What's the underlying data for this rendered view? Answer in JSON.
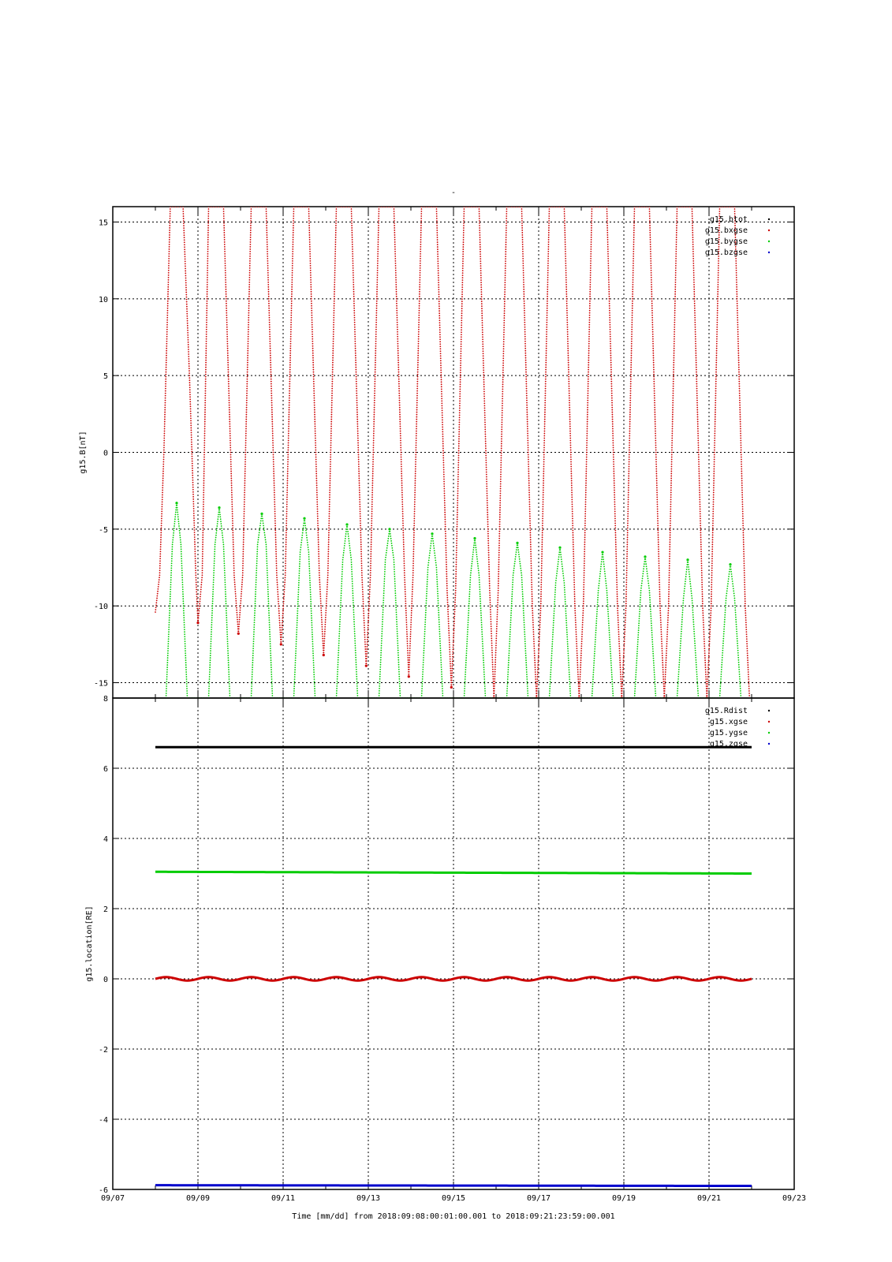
{
  "title": "-",
  "xlabel": "Time [mm/dd]  from 2018:09:08:00:01:00.001  to  2018:09:21:23:59:00.001",
  "x_ticks": [
    "09/07",
    "09/09",
    "09/11",
    "09/13",
    "09/15",
    "09/17",
    "09/19",
    "09/21",
    "09/23"
  ],
  "chart_data": [
    {
      "type": "scatter",
      "ylabel": "g15.B[nT]",
      "xlim_days": [
        7,
        23
      ],
      "ylim": [
        -16,
        16
      ],
      "y_ticks": [
        -15,
        -10,
        -5,
        0,
        5,
        10,
        15
      ],
      "grid": true,
      "legend_position": "top-right",
      "series": [
        {
          "name": "g15.btot",
          "color": "#000000"
        },
        {
          "name": "g15.bxgse",
          "color": "#cc0000",
          "x": [
            8.0,
            8.1,
            8.2,
            8.35,
            8.65,
            8.8,
            8.95,
            9.0,
            9.1,
            9.25,
            9.6,
            9.85,
            9.95,
            10.05,
            10.25,
            10.6,
            10.85,
            10.95,
            11.05,
            11.25,
            11.6,
            11.85,
            11.95,
            12.05,
            12.25,
            12.6,
            12.85,
            12.95,
            13.05,
            13.25,
            13.6,
            13.85,
            13.95,
            14.05,
            14.25,
            14.6,
            14.85,
            14.95,
            15.05,
            15.25,
            15.6,
            15.85,
            15.95,
            16.05,
            16.25,
            16.6,
            16.85,
            16.95,
            17.05,
            17.25,
            17.6,
            17.85,
            17.95,
            18.05,
            18.25,
            18.6,
            18.85,
            18.95,
            19.05,
            19.25,
            19.6,
            19.85,
            19.95,
            20.05,
            20.25,
            20.6,
            20.85,
            20.95,
            21.05,
            21.25,
            21.6,
            21.85,
            21.95
          ],
          "y": [
            -10.4,
            -8,
            0,
            16,
            16,
            5,
            -8,
            -11.1,
            -8,
            16,
            16,
            -8,
            -11.8,
            -8,
            16,
            16,
            -8,
            -12.5,
            -8,
            16,
            16,
            -8,
            -13.2,
            -8,
            16,
            16,
            -8,
            -13.9,
            -8,
            16,
            16,
            -8,
            -14.6,
            -8,
            16,
            16,
            -9,
            -15.3,
            -9,
            16,
            16,
            -9,
            -16,
            -9,
            16,
            16,
            -10,
            -16,
            -10,
            16,
            16,
            -10,
            -16,
            -10,
            16,
            16,
            -10,
            -16,
            -10,
            16,
            16,
            -10,
            -16,
            -10,
            16,
            16,
            -10,
            -16,
            -10,
            16,
            16,
            -10,
            -16
          ]
        },
        {
          "name": "g15.bygse",
          "color": "#00cc00",
          "x": [
            8.25,
            8.4,
            8.5,
            8.6,
            8.75,
            9.25,
            9.4,
            9.5,
            9.6,
            9.75,
            10.25,
            10.4,
            10.5,
            10.6,
            10.75,
            11.25,
            11.4,
            11.5,
            11.6,
            11.75,
            12.25,
            12.4,
            12.5,
            12.6,
            12.75,
            13.25,
            13.4,
            13.5,
            13.6,
            13.75,
            14.25,
            14.4,
            14.5,
            14.6,
            14.75,
            15.25,
            15.4,
            15.5,
            15.6,
            15.75,
            16.25,
            16.4,
            16.5,
            16.6,
            16.75,
            17.25,
            17.4,
            17.5,
            17.6,
            17.75,
            18.25,
            18.4,
            18.5,
            18.6,
            18.75,
            19.25,
            19.4,
            19.5,
            19.6,
            19.75,
            20.25,
            20.4,
            20.5,
            20.6,
            20.75,
            21.25,
            21.4,
            21.5,
            21.6,
            21.75
          ],
          "y": [
            -16,
            -6,
            -3.3,
            -6,
            -16,
            -16,
            -6,
            -3.6,
            -6,
            -16,
            -16,
            -6,
            -4.0,
            -6,
            -16,
            -16,
            -6.5,
            -4.3,
            -6.5,
            -16,
            -16,
            -7,
            -4.7,
            -7,
            -16,
            -16,
            -7,
            -5.0,
            -7,
            -16,
            -16,
            -7.5,
            -5.3,
            -7.5,
            -16,
            -16,
            -8,
            -5.6,
            -8,
            -16,
            -16,
            -8,
            -5.9,
            -8,
            -16,
            -16,
            -8.5,
            -6.2,
            -8.5,
            -16,
            -16,
            -9,
            -6.5,
            -9,
            -16,
            -16,
            -9,
            -6.8,
            -9,
            -16,
            -16,
            -9.5,
            -7.0,
            -9.5,
            -16,
            -16,
            -9.5,
            -7.3,
            -9.5,
            -16
          ]
        },
        {
          "name": "g15.bzgse",
          "color": "#0000cc"
        }
      ]
    },
    {
      "type": "line",
      "ylabel": "g15.location[RE]",
      "xlim_days": [
        7,
        23
      ],
      "ylim": [
        -6,
        8
      ],
      "y_ticks": [
        -6,
        -4,
        -2,
        0,
        2,
        4,
        6,
        8
      ],
      "grid": true,
      "legend_position": "top-right",
      "series": [
        {
          "name": "g15.Rdist",
          "color": "#000000",
          "x": [
            8.0,
            22.0
          ],
          "y": [
            6.6,
            6.6
          ]
        },
        {
          "name": "g15.xgse",
          "color": "#cc0000",
          "x": [
            8.0,
            22.0
          ],
          "y": [
            0.0,
            0.0
          ],
          "amplitude": 0.05,
          "period_days": 1.0
        },
        {
          "name": "g15.ygse",
          "color": "#00cc00",
          "x": [
            8.0,
            22.0
          ],
          "y": [
            3.05,
            3.0
          ]
        },
        {
          "name": "g15.zgse",
          "color": "#0000cc",
          "x": [
            8.0,
            22.0
          ],
          "y": [
            -5.88,
            -5.9
          ]
        }
      ]
    }
  ]
}
